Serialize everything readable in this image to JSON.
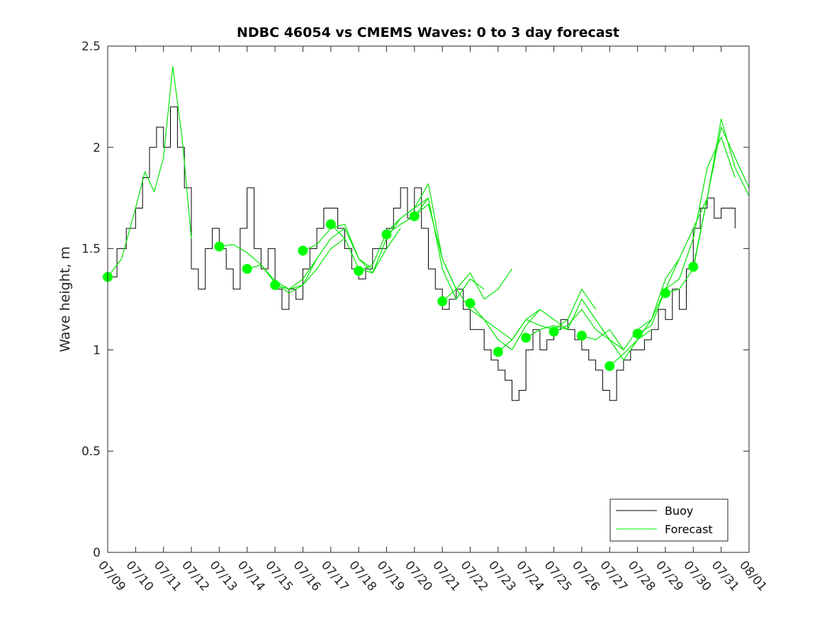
{
  "chart_data": {
    "type": "line",
    "title": "NDBC 46054 vs CMEMS Waves: 0 to 3 day forecast",
    "xlabel": "",
    "ylabel": "Wave height, m",
    "xlim": [
      "07/09",
      "08/01"
    ],
    "ylim": [
      0,
      2.5
    ],
    "grid": false,
    "legend_position": "bottom-right",
    "x_tick_labels": [
      "07/09",
      "07/10",
      "07/11",
      "07/12",
      "07/13",
      "07/14",
      "07/15",
      "07/16",
      "07/17",
      "07/18",
      "07/19",
      "07/20",
      "07/21",
      "07/22",
      "07/23",
      "07/24",
      "07/25",
      "07/26",
      "07/27",
      "07/28",
      "07/29",
      "07/30",
      "07/31",
      "08/01"
    ],
    "y_ticks": [
      0,
      0.5,
      1,
      1.5,
      2,
      2.5
    ],
    "y_tick_labels": [
      "0",
      "0.5",
      "1",
      "1.5",
      "2",
      "2.5"
    ],
    "legend": [
      {
        "label": "Buoy",
        "color": "#000000"
      },
      {
        "label": "Forecast",
        "color": "#00ff00"
      }
    ],
    "colors": {
      "buoy": "#000000",
      "forecast": "#00e600",
      "marker": "#00ff00"
    },
    "buoy": {
      "name": "Buoy",
      "x": [
        "07/09",
        "07/09",
        "07/09",
        "07/10",
        "07/10",
        "07/10",
        "07/10",
        "07/11",
        "07/11",
        "07/11",
        "07/11",
        "07/12",
        "07/12",
        "07/12",
        "07/12",
        "07/13",
        "07/13",
        "07/13",
        "07/13",
        "07/14",
        "07/14",
        "07/14",
        "07/14",
        "07/15",
        "07/15",
        "07/15",
        "07/15",
        "07/16",
        "07/16",
        "07/16",
        "07/16",
        "07/17",
        "07/17",
        "07/17",
        "07/17",
        "07/18",
        "07/18",
        "07/18",
        "07/18",
        "07/19",
        "07/19",
        "07/19",
        "07/19",
        "07/20",
        "07/20",
        "07/20",
        "07/20",
        "07/21",
        "07/21",
        "07/21",
        "07/21",
        "07/22",
        "07/22",
        "07/22",
        "07/22",
        "07/23",
        "07/23",
        "07/23",
        "07/23",
        "07/24",
        "07/24",
        "07/24",
        "07/24",
        "07/25",
        "07/25",
        "07/25",
        "07/25",
        "07/26",
        "07/26",
        "07/26",
        "07/26",
        "07/27",
        "07/27",
        "07/27",
        "07/27",
        "07/28",
        "07/28",
        "07/28",
        "07/28",
        "07/29",
        "07/29",
        "07/29",
        "07/29",
        "07/30",
        "07/30",
        "07/30",
        "07/30",
        "07/31",
        "07/31"
      ],
      "y": [
        1.36,
        1.5,
        1.6,
        1.7,
        1.85,
        2.0,
        2.1,
        2.0,
        2.2,
        2.0,
        1.8,
        1.4,
        1.3,
        1.5,
        1.6,
        1.5,
        1.4,
        1.3,
        1.6,
        1.8,
        1.5,
        1.4,
        1.5,
        1.3,
        1.2,
        1.3,
        1.25,
        1.4,
        1.5,
        1.6,
        1.7,
        1.7,
        1.6,
        1.5,
        1.4,
        1.35,
        1.4,
        1.5,
        1.5,
        1.6,
        1.7,
        1.8,
        1.65,
        1.8,
        1.6,
        1.4,
        1.3,
        1.2,
        1.25,
        1.3,
        1.2,
        1.1,
        1.1,
        1.0,
        0.95,
        0.9,
        0.85,
        0.75,
        0.8,
        1.0,
        1.1,
        1.0,
        1.05,
        1.1,
        1.15,
        1.1,
        1.05,
        1.0,
        0.95,
        0.9,
        0.8,
        0.75,
        0.9,
        0.95,
        1.0,
        1.0,
        1.05,
        1.1,
        1.2,
        1.15,
        1.3,
        1.2,
        1.4,
        1.6,
        1.7,
        1.75,
        1.65,
        1.7,
        1.6
      ]
    },
    "forecast_runs": [
      {
        "name": "Forecast",
        "x": [
          "07/09",
          "07/09",
          "07/10",
          "07/10",
          "07/10",
          "07/11",
          "07/11",
          "07/11",
          "07/12"
        ],
        "y": [
          1.36,
          1.45,
          1.7,
          1.88,
          1.78,
          1.95,
          2.4,
          2.05,
          1.55
        ]
      },
      {
        "name": "Forecast",
        "x": [
          "07/13",
          "07/13",
          "07/14",
          "07/14",
          "07/15",
          "07/15",
          "07/16",
          "07/16"
        ],
        "y": [
          1.51,
          1.52,
          1.48,
          1.42,
          1.34,
          1.3,
          1.32,
          1.45
        ]
      },
      {
        "name": "Forecast",
        "x": [
          "07/14",
          "07/14",
          "07/15",
          "07/15",
          "07/16",
          "07/16",
          "07/17",
          "07/17"
        ],
        "y": [
          1.4,
          1.42,
          1.33,
          1.28,
          1.32,
          1.4,
          1.5,
          1.55
        ]
      },
      {
        "name": "Forecast",
        "x": [
          "07/15",
          "07/15",
          "07/16",
          "07/16",
          "07/17",
          "07/17",
          "07/18",
          "07/18"
        ],
        "y": [
          1.32,
          1.3,
          1.35,
          1.45,
          1.55,
          1.6,
          1.45,
          1.4
        ]
      },
      {
        "name": "Forecast",
        "x": [
          "07/16",
          "07/16",
          "07/17",
          "07/17",
          "07/18",
          "07/18",
          "07/19",
          "07/19"
        ],
        "y": [
          1.49,
          1.52,
          1.6,
          1.62,
          1.45,
          1.38,
          1.5,
          1.6
        ]
      },
      {
        "name": "Forecast",
        "x": [
          "07/17",
          "07/17",
          "07/18",
          "07/18",
          "07/19",
          "07/19",
          "07/20",
          "07/20"
        ],
        "y": [
          1.62,
          1.55,
          1.4,
          1.38,
          1.55,
          1.65,
          1.7,
          1.75
        ]
      },
      {
        "name": "Forecast",
        "x": [
          "07/18",
          "07/18",
          "07/19",
          "07/19",
          "07/20",
          "07/20",
          "07/21",
          "07/21"
        ],
        "y": [
          1.39,
          1.42,
          1.58,
          1.65,
          1.7,
          1.82,
          1.45,
          1.3
        ]
      },
      {
        "name": "Forecast",
        "x": [
          "07/19",
          "07/19",
          "07/20",
          "07/20",
          "07/21",
          "07/21",
          "07/22",
          "07/22"
        ],
        "y": [
          1.57,
          1.62,
          1.66,
          1.75,
          1.4,
          1.25,
          1.35,
          1.3
        ]
      },
      {
        "name": "Forecast",
        "x": [
          "07/20",
          "07/20",
          "07/21",
          "07/21",
          "07/22",
          "07/22",
          "07/23",
          "07/23"
        ],
        "y": [
          1.66,
          1.72,
          1.45,
          1.3,
          1.38,
          1.25,
          1.3,
          1.4
        ]
      },
      {
        "name": "Forecast",
        "x": [
          "07/21",
          "07/21",
          "07/22",
          "07/22",
          "07/23",
          "07/23",
          "07/24",
          "07/24"
        ],
        "y": [
          1.24,
          1.3,
          1.2,
          1.15,
          1.1,
          1.05,
          1.15,
          1.2
        ]
      },
      {
        "name": "Forecast",
        "x": [
          "07/22",
          "07/22",
          "07/23",
          "07/23",
          "07/24",
          "07/24",
          "07/25",
          "07/25"
        ],
        "y": [
          1.23,
          1.15,
          1.05,
          1.0,
          1.12,
          1.2,
          1.15,
          1.1
        ]
      },
      {
        "name": "Forecast",
        "x": [
          "07/23",
          "07/23",
          "07/24",
          "07/24",
          "07/25",
          "07/25",
          "07/26",
          "07/26"
        ],
        "y": [
          0.99,
          1.05,
          1.15,
          1.12,
          1.1,
          1.15,
          1.3,
          1.2
        ]
      },
      {
        "name": "Forecast",
        "x": [
          "07/24",
          "07/24",
          "07/25",
          "07/25",
          "07/26",
          "07/26",
          "07/27",
          "07/27"
        ],
        "y": [
          1.06,
          1.1,
          1.12,
          1.1,
          1.25,
          1.15,
          1.05,
          1.0
        ]
      },
      {
        "name": "Forecast",
        "x": [
          "07/25",
          "07/25",
          "07/26",
          "07/26",
          "07/27",
          "07/27",
          "07/28",
          "07/28"
        ],
        "y": [
          1.09,
          1.12,
          1.2,
          1.1,
          1.05,
          0.95,
          1.05,
          1.1
        ]
      },
      {
        "name": "Forecast",
        "x": [
          "07/26",
          "07/26",
          "07/27",
          "07/27",
          "07/28",
          "07/28",
          "07/29",
          "07/29"
        ],
        "y": [
          1.07,
          1.05,
          1.1,
          1.0,
          1.1,
          1.15,
          1.35,
          1.45
        ]
      },
      {
        "name": "Forecast",
        "x": [
          "07/27",
          "07/27",
          "07/28",
          "07/28",
          "07/29",
          "07/29",
          "07/30",
          "07/30"
        ],
        "y": [
          0.92,
          0.98,
          1.05,
          1.15,
          1.3,
          1.45,
          1.6,
          1.75
        ]
      },
      {
        "name": "Forecast",
        "x": [
          "07/28",
          "07/28",
          "07/29",
          "07/29",
          "07/30",
          "07/30",
          "07/31",
          "07/31"
        ],
        "y": [
          1.08,
          1.12,
          1.3,
          1.35,
          1.55,
          1.9,
          2.05,
          1.85
        ]
      },
      {
        "name": "Forecast",
        "x": [
          "07/29",
          "07/29",
          "07/30",
          "07/30",
          "07/31",
          "07/31",
          "08/01"
        ],
        "y": [
          1.28,
          1.3,
          1.4,
          1.75,
          2.1,
          1.95,
          1.8
        ]
      },
      {
        "name": "Forecast",
        "x": [
          "07/30",
          "07/30",
          "07/31",
          "07/31",
          "08/01"
        ],
        "y": [
          1.41,
          1.75,
          2.14,
          1.9,
          1.76
        ]
      }
    ],
    "forecast_markers": {
      "x": [
        "07/09",
        "07/13",
        "07/14",
        "07/15",
        "07/16",
        "07/17",
        "07/18",
        "07/19",
        "07/20",
        "07/21",
        "07/22",
        "07/23",
        "07/24",
        "07/25",
        "07/26",
        "07/27",
        "07/28",
        "07/29",
        "07/30"
      ],
      "y": [
        1.36,
        1.51,
        1.4,
        1.32,
        1.49,
        1.62,
        1.39,
        1.57,
        1.66,
        1.24,
        1.23,
        0.99,
        1.06,
        1.09,
        1.07,
        0.92,
        1.08,
        1.28,
        1.41
      ]
    }
  }
}
